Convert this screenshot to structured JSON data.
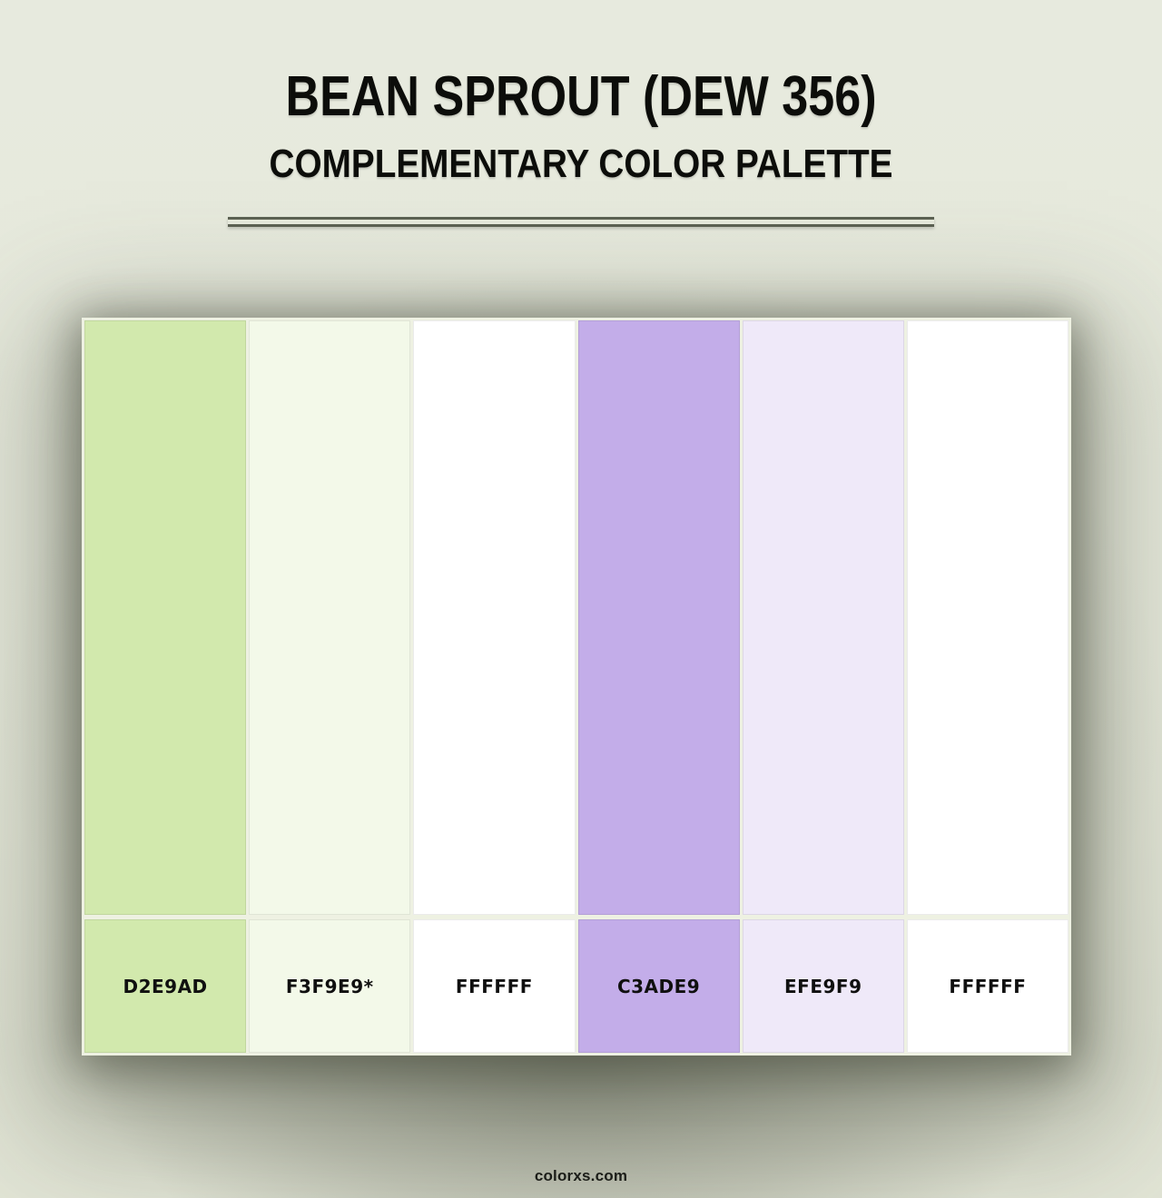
{
  "header": {
    "title": "BEAN SPROUT (DEW 356)",
    "subtitle": "COMPLEMENTARY COLOR PALETTE"
  },
  "palette": {
    "swatches": [
      {
        "hex": "#D2E9AD",
        "label": "D2E9AD"
      },
      {
        "hex": "#F3F9E9",
        "label": "F3F9E9*"
      },
      {
        "hex": "#FFFFFF",
        "label": "FFFFFF"
      },
      {
        "hex": "#C3ADE9",
        "label": "C3ADE9"
      },
      {
        "hex": "#EFE9F9",
        "label": "EFE9F9"
      },
      {
        "hex": "#FFFFFF",
        "label": "FFFFFF"
      }
    ]
  },
  "footer": {
    "site": "colorxs.com"
  },
  "theme": {
    "page_background": "#e6e9dc",
    "card_background": "#eef1e2",
    "divider_color": "#5c6153",
    "text_color": "#0c0d0a"
  }
}
